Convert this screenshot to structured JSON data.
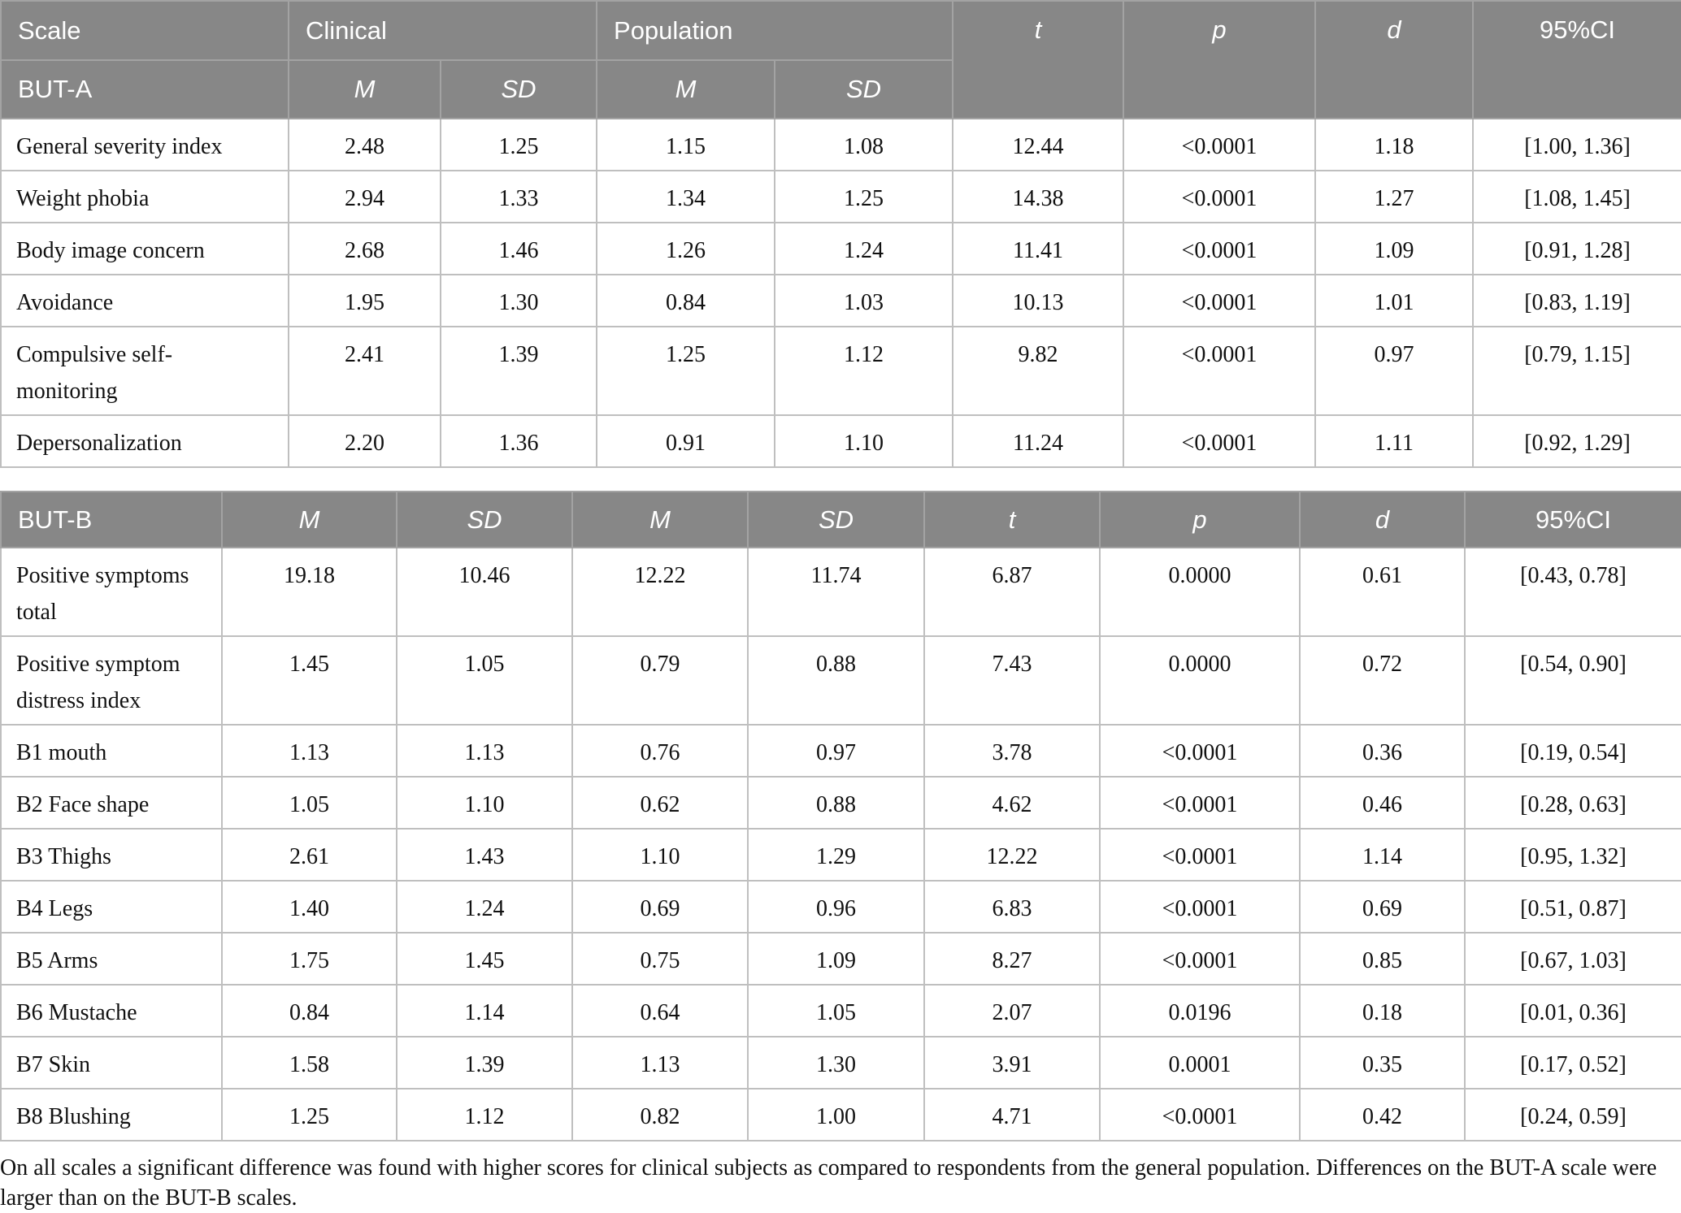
{
  "colors": {
    "header_bg": "#878787",
    "header_text": "#ffffff",
    "header_divider": "#a3a3a3",
    "grid_line": "#bfbfbf",
    "body_text": "#111111"
  },
  "table_a": {
    "header_row1": {
      "scale": "Scale",
      "clinical": "Clinical",
      "population": "Population",
      "t": "t",
      "p": "p",
      "d": "d",
      "ci": "95%CI"
    },
    "header_row2": {
      "group": "BUT-A",
      "clinical_m": "M",
      "clinical_sd": "SD",
      "population_m": "M",
      "population_sd": "SD"
    },
    "rows": [
      {
        "label": "General severity index",
        "clinical_m": "2.48",
        "clinical_sd": "1.25",
        "population_m": "1.15",
        "population_sd": "1.08",
        "t": "12.44",
        "p": "<0.0001",
        "d": "1.18",
        "ci": "[1.00, 1.36]"
      },
      {
        "label": "Weight phobia",
        "clinical_m": "2.94",
        "clinical_sd": "1.33",
        "population_m": "1.34",
        "population_sd": "1.25",
        "t": "14.38",
        "p": "<0.0001",
        "d": "1.27",
        "ci": "[1.08, 1.45]"
      },
      {
        "label": "Body image concern",
        "clinical_m": "2.68",
        "clinical_sd": "1.46",
        "population_m": "1.26",
        "population_sd": "1.24",
        "t": "11.41",
        "p": "<0.0001",
        "d": "1.09",
        "ci": "[0.91, 1.28]"
      },
      {
        "label": "Avoidance",
        "clinical_m": "1.95",
        "clinical_sd": "1.30",
        "population_m": "0.84",
        "population_sd": "1.03",
        "t": "10.13",
        "p": "<0.0001",
        "d": "1.01",
        "ci": "[0.83, 1.19]"
      },
      {
        "label": "Compulsive self-monitoring",
        "clinical_m": "2.41",
        "clinical_sd": "1.39",
        "population_m": "1.25",
        "population_sd": "1.12",
        "t": "9.82",
        "p": "<0.0001",
        "d": "0.97",
        "ci": "[0.79, 1.15]"
      },
      {
        "label": "Depersonalization",
        "clinical_m": "2.20",
        "clinical_sd": "1.36",
        "population_m": "0.91",
        "population_sd": "1.10",
        "t": "11.24",
        "p": "<0.0001",
        "d": "1.11",
        "ci": "[0.92, 1.29]"
      }
    ]
  },
  "table_b": {
    "header": {
      "group": "BUT-B",
      "clinical_m": "M",
      "clinical_sd": "SD",
      "population_m": "M",
      "population_sd": "SD",
      "t": "t",
      "p": "p",
      "d": "d",
      "ci": "95%CI"
    },
    "rows": [
      {
        "label": "Positive symptoms total",
        "clinical_m": "19.18",
        "clinical_sd": "10.46",
        "population_m": "12.22",
        "population_sd": "11.74",
        "t": "6.87",
        "p": "0.0000",
        "d": "0.61",
        "ci": "[0.43, 0.78]"
      },
      {
        "label": "Positive symptom distress index",
        "clinical_m": "1.45",
        "clinical_sd": "1.05",
        "population_m": "0.79",
        "population_sd": "0.88",
        "t": "7.43",
        "p": "0.0000",
        "d": "0.72",
        "ci": "[0.54, 0.90]"
      },
      {
        "label": "B1 mouth",
        "clinical_m": "1.13",
        "clinical_sd": "1.13",
        "population_m": "0.76",
        "population_sd": "0.97",
        "t": "3.78",
        "p": "<0.0001",
        "d": "0.36",
        "ci": "[0.19, 0.54]"
      },
      {
        "label": "B2 Face shape",
        "clinical_m": "1.05",
        "clinical_sd": "1.10",
        "population_m": "0.62",
        "population_sd": "0.88",
        "t": "4.62",
        "p": "<0.0001",
        "d": "0.46",
        "ci": "[0.28, 0.63]"
      },
      {
        "label": "B3 Thighs",
        "clinical_m": "2.61",
        "clinical_sd": "1.43",
        "population_m": "1.10",
        "population_sd": "1.29",
        "t": "12.22",
        "p": "<0.0001",
        "d": "1.14",
        "ci": "[0.95, 1.32]"
      },
      {
        "label": "B4 Legs",
        "clinical_m": "1.40",
        "clinical_sd": "1.24",
        "population_m": "0.69",
        "population_sd": "0.96",
        "t": "6.83",
        "p": "<0.0001",
        "d": "0.69",
        "ci": "[0.51, 0.87]"
      },
      {
        "label": "B5 Arms",
        "clinical_m": "1.75",
        "clinical_sd": "1.45",
        "population_m": "0.75",
        "population_sd": "1.09",
        "t": "8.27",
        "p": "<0.0001",
        "d": "0.85",
        "ci": "[0.67, 1.03]"
      },
      {
        "label": "B6 Mustache",
        "clinical_m": "0.84",
        "clinical_sd": "1.14",
        "population_m": "0.64",
        "population_sd": "1.05",
        "t": "2.07",
        "p": "0.0196",
        "d": "0.18",
        "ci": "[0.01, 0.36]"
      },
      {
        "label": "B7 Skin",
        "clinical_m": "1.58",
        "clinical_sd": "1.39",
        "population_m": "1.13",
        "population_sd": "1.30",
        "t": "3.91",
        "p": "0.0001",
        "d": "0.35",
        "ci": "[0.17, 0.52]"
      },
      {
        "label": "B8 Blushing",
        "clinical_m": "1.25",
        "clinical_sd": "1.12",
        "population_m": "0.82",
        "population_sd": "1.00",
        "t": "4.71",
        "p": "<0.0001",
        "d": "0.42",
        "ci": "[0.24, 0.59]"
      }
    ]
  },
  "footnote": "On all scales a significant difference was found with higher scores for clinical subjects as compared to respondents from the general population. Differences on the BUT-A scale were larger than on the BUT-B scales."
}
